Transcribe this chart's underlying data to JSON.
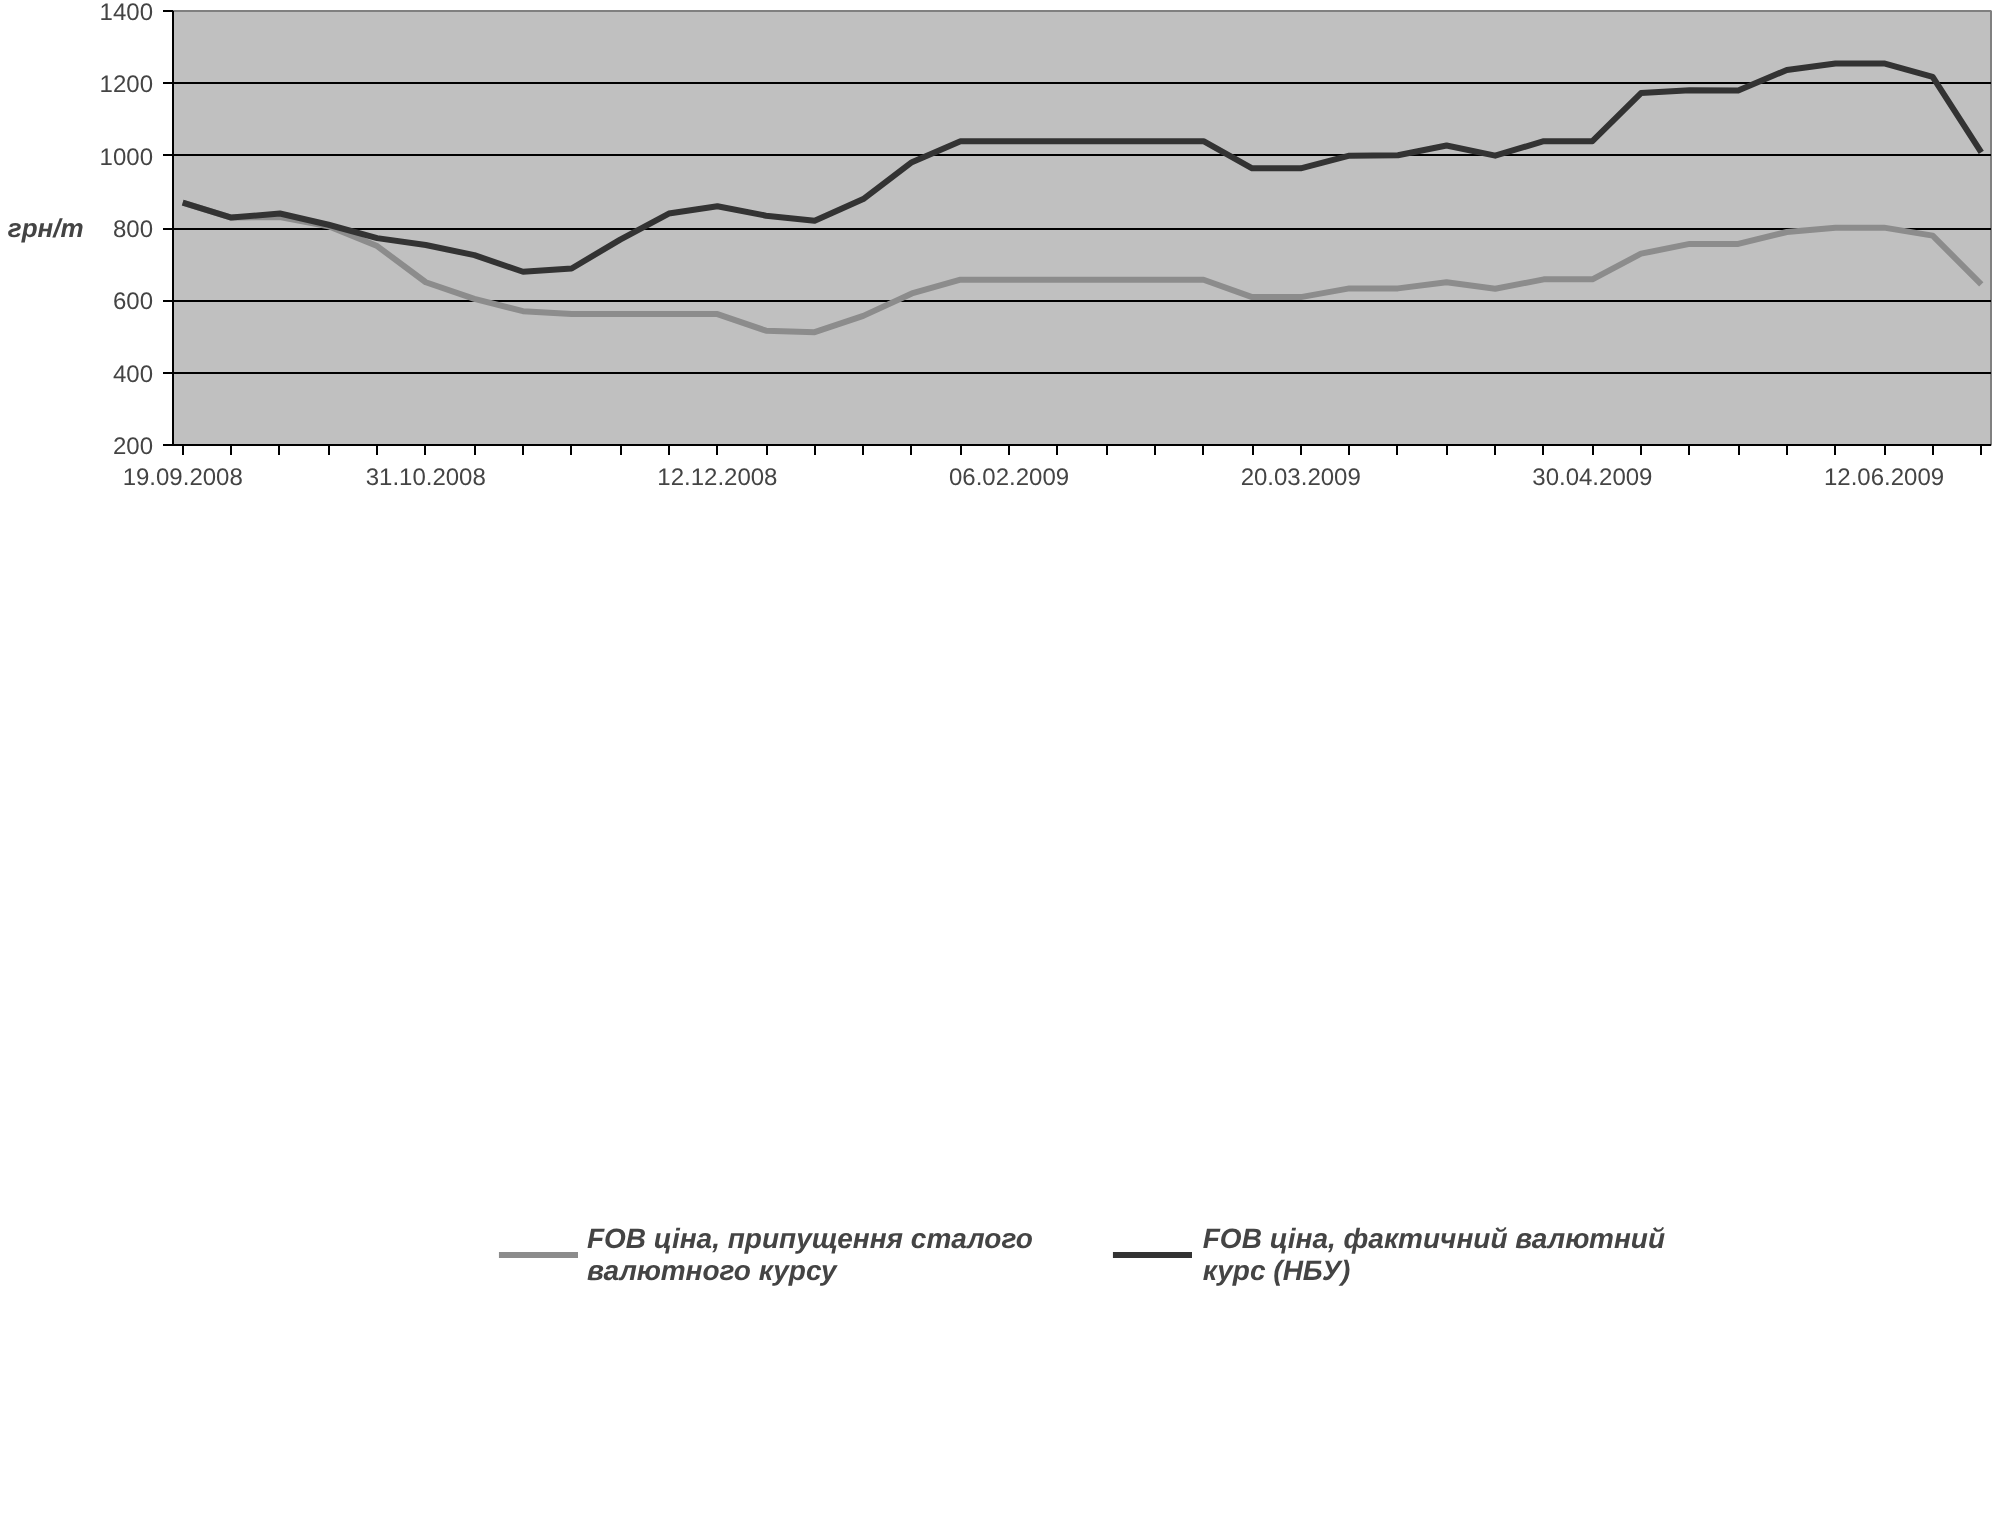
{
  "chart_data": {
    "type": "line",
    "ylabel": "грн/т",
    "categories": [
      "19.09.2008",
      null,
      null,
      null,
      null,
      "31.10.2008",
      null,
      null,
      null,
      null,
      null,
      "12.12.2008",
      null,
      null,
      null,
      null,
      null,
      "06.02.2009",
      null,
      null,
      null,
      null,
      null,
      "20.03.2009",
      null,
      null,
      null,
      null,
      null,
      "30.04.2009",
      null,
      null,
      null,
      null,
      null,
      "12.06.2009",
      null,
      null
    ],
    "series": [
      {
        "name": "FOB ціна, припущення сталого валютного курсу",
        "color": "#8c8c8c",
        "values": [
          870,
          829,
          830,
          805,
          750,
          650,
          604,
          570,
          562,
          562,
          562,
          562,
          516,
          512,
          557,
          619,
          657,
          657,
          657,
          657,
          657,
          657,
          609,
          609,
          633,
          633,
          650,
          632,
          658,
          658,
          729,
          756,
          756,
          789,
          801,
          801,
          779,
          644
        ]
      },
      {
        "name": "FOB ціна, фактичний валютний курс (НБУ)",
        "color": "#333333",
        "values": [
          870,
          829,
          840,
          809,
          772,
          753,
          725,
          679,
          688,
          768,
          840,
          860,
          834,
          820,
          880,
          982,
          1040,
          1040,
          1040,
          1040,
          1040,
          1040,
          965,
          965,
          1000,
          1001,
          1028,
          1000,
          1040,
          1040,
          1173,
          1181,
          1180,
          1237,
          1255,
          1255,
          1218,
          1009
        ]
      }
    ],
    "ylim": [
      200,
      1400
    ],
    "yticks": [
      200,
      400,
      600,
      800,
      1000,
      1200,
      1400
    ],
    "grid": "y",
    "legend": "bottom",
    "marker": "none",
    "line_style": "solid"
  }
}
